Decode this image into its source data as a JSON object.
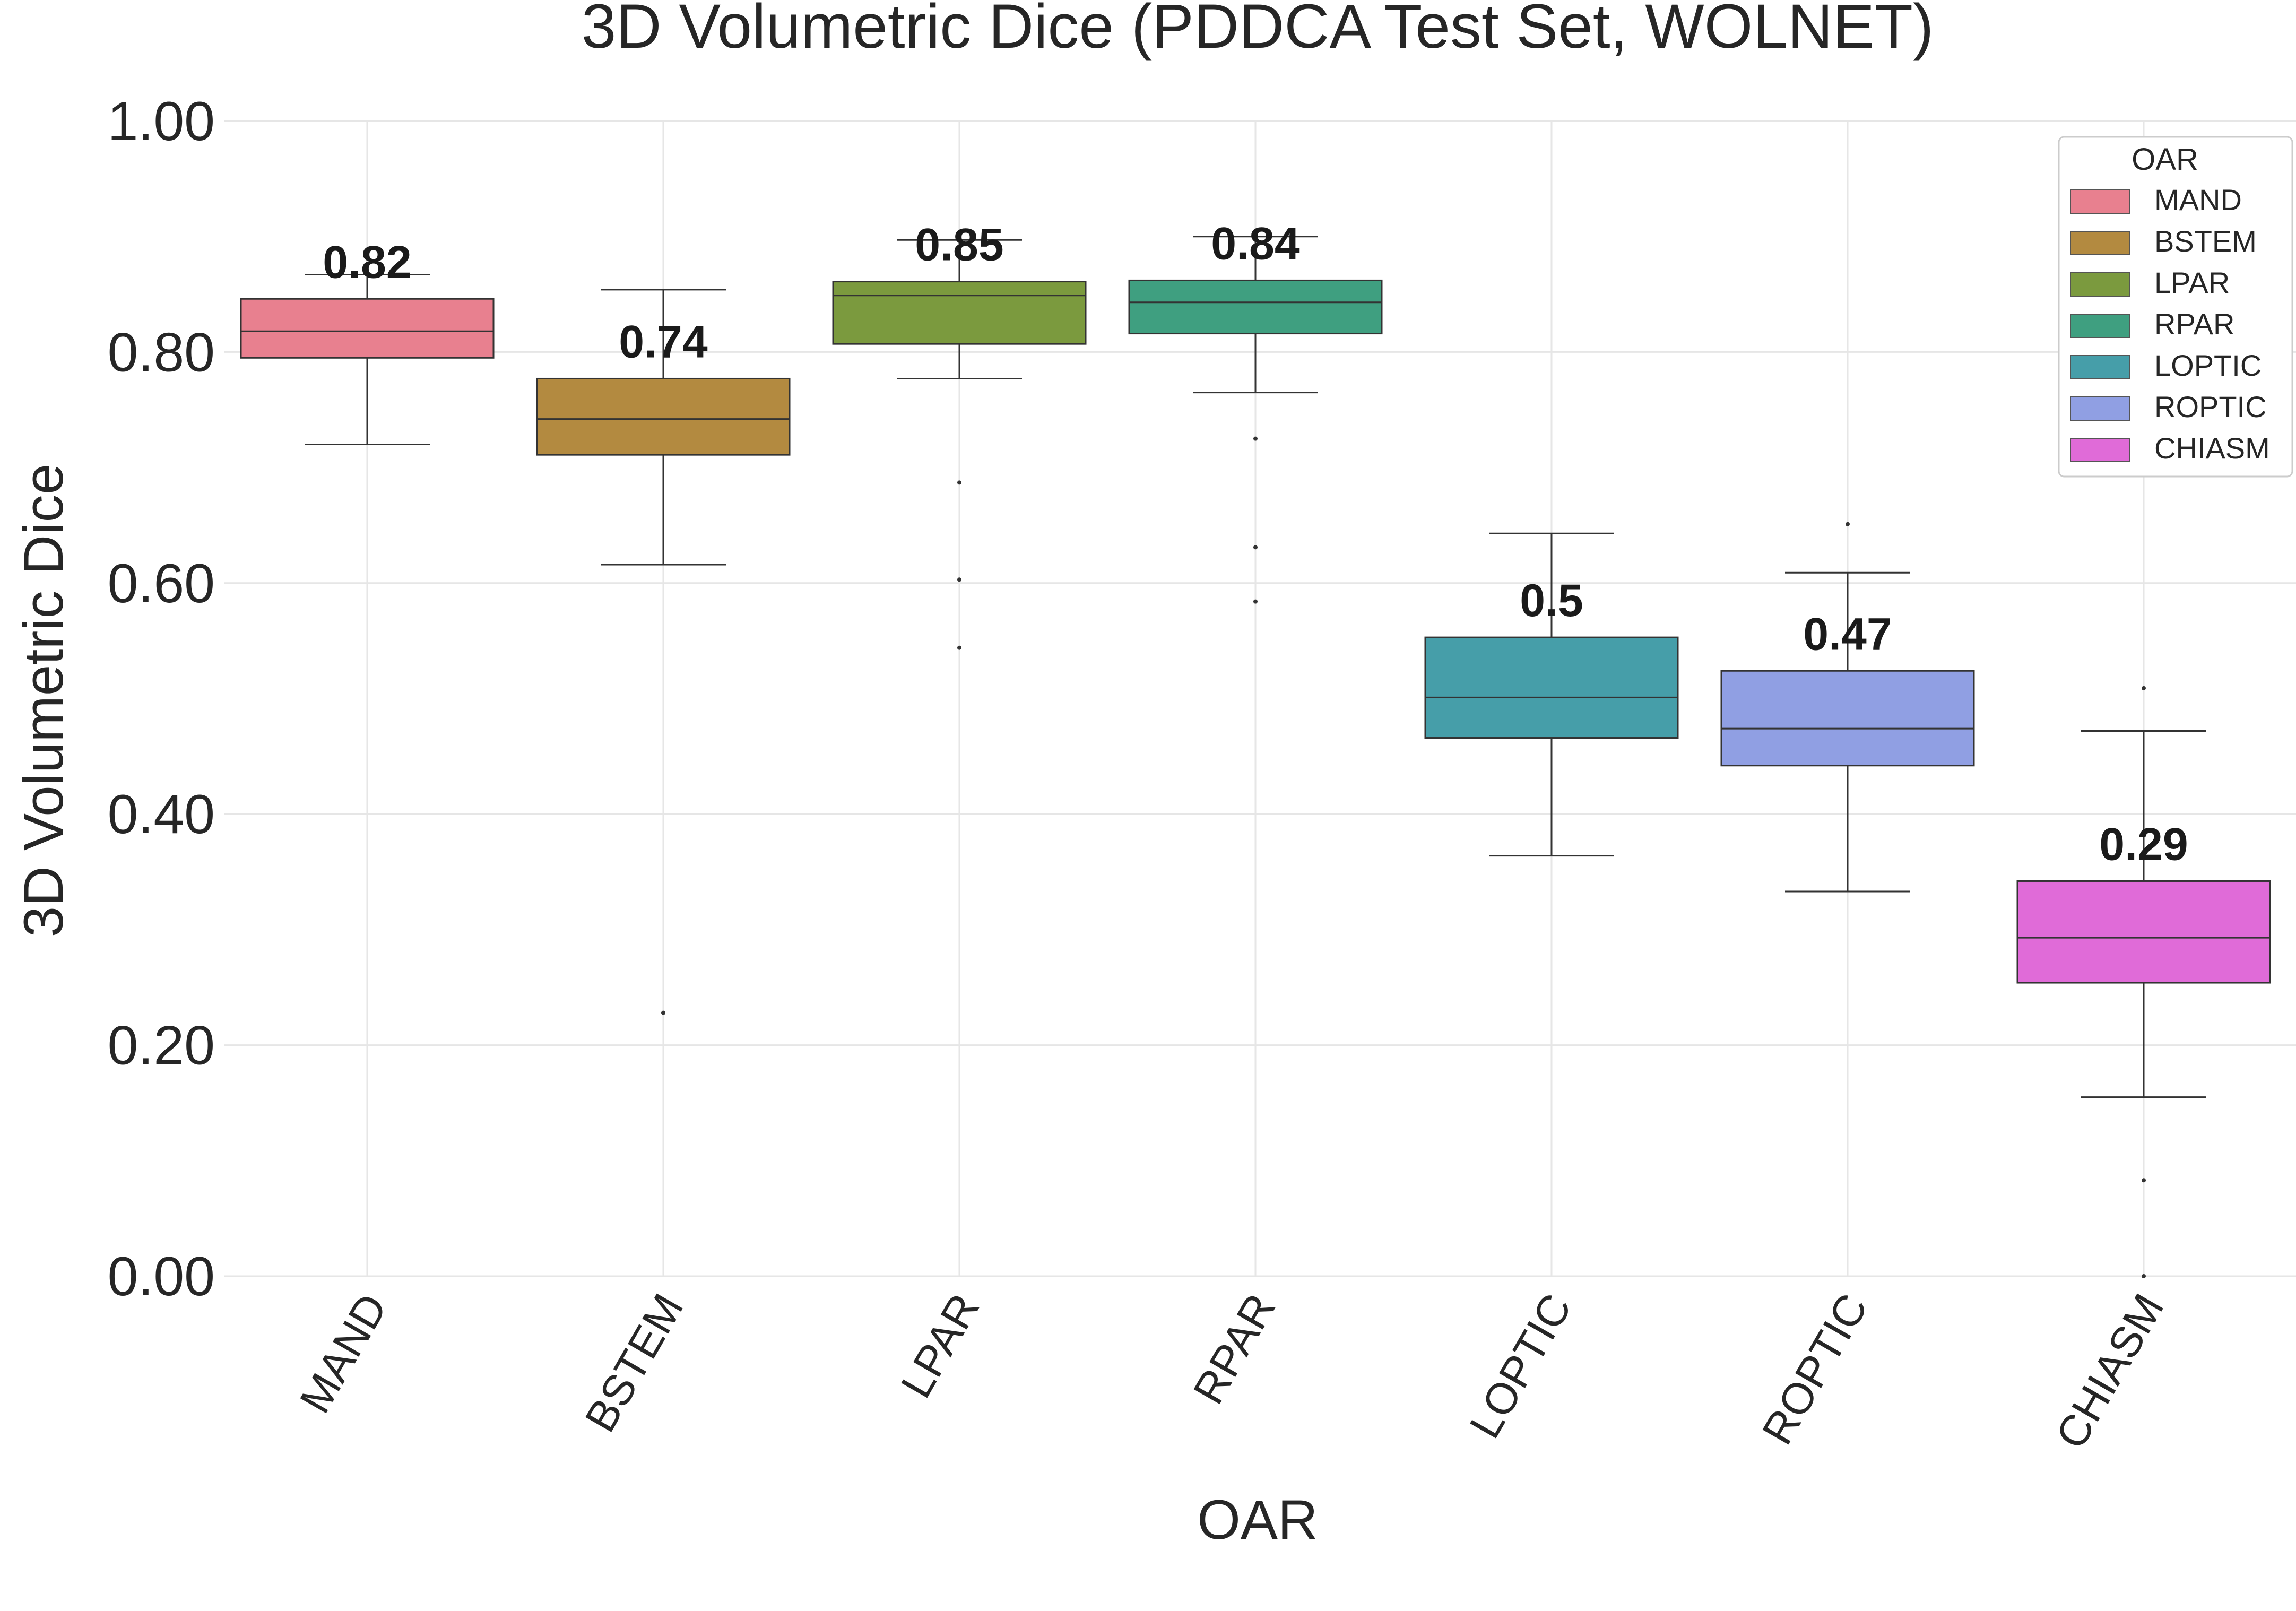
{
  "chart_data": {
    "type": "box",
    "title": "3D Volumetric Dice (PDDCA Test Set, WOLNET)",
    "xlabel": "OAR",
    "ylabel": "3D Volumetric Dice",
    "ylim": [
      0,
      1
    ],
    "yticks": [
      "0.00",
      "0.20",
      "0.40",
      "0.60",
      "0.80",
      "1.00"
    ],
    "grid": true,
    "legend": {
      "title": "OAR",
      "position": "top-right"
    },
    "categories": [
      "MAND",
      "BSTEM",
      "LPAR",
      "RPAR",
      "LOPTIC",
      "ROPTIC",
      "CHIASM"
    ],
    "series": [
      {
        "name": "MAND",
        "color": "#e8808f",
        "whisker_low": 0.72,
        "q1": 0.795,
        "median": 0.818,
        "q3": 0.846,
        "whisker_high": 0.867,
        "outliers": [],
        "median_label": "0.82"
      },
      {
        "name": "BSTEM",
        "color": "#b38a40",
        "whisker_low": 0.616,
        "q1": 0.711,
        "median": 0.742,
        "q3": 0.777,
        "whisker_high": 0.854,
        "outliers": [
          0.228
        ],
        "median_label": "0.74"
      },
      {
        "name": "LPAR",
        "color": "#7b9a3e",
        "whisker_low": 0.777,
        "q1": 0.807,
        "median": 0.849,
        "q3": 0.861,
        "whisker_high": 0.897,
        "outliers": [
          0.687,
          0.603,
          0.544
        ],
        "median_label": "0.85"
      },
      {
        "name": "RPAR",
        "color": "#3f9f80",
        "whisker_low": 0.765,
        "q1": 0.816,
        "median": 0.843,
        "q3": 0.862,
        "whisker_high": 0.9,
        "outliers": [
          0.725,
          0.631,
          0.584
        ],
        "median_label": "0.84"
      },
      {
        "name": "LOPTIC",
        "color": "#469ea9",
        "whisker_low": 0.364,
        "q1": 0.466,
        "median": 0.501,
        "q3": 0.553,
        "whisker_high": 0.643,
        "outliers": [],
        "median_label": "0.5"
      },
      {
        "name": "ROPTIC",
        "color": "#909fe3",
        "whisker_low": 0.333,
        "q1": 0.442,
        "median": 0.474,
        "q3": 0.524,
        "whisker_high": 0.609,
        "outliers": [
          0.651
        ],
        "median_label": "0.47"
      },
      {
        "name": "CHIASM",
        "color": "#e06bd8",
        "whisker_low": 0.155,
        "q1": 0.254,
        "median": 0.293,
        "q3": 0.342,
        "whisker_high": 0.472,
        "outliers": [
          0.509,
          0.083,
          0.0
        ],
        "median_label": "0.29"
      }
    ]
  }
}
